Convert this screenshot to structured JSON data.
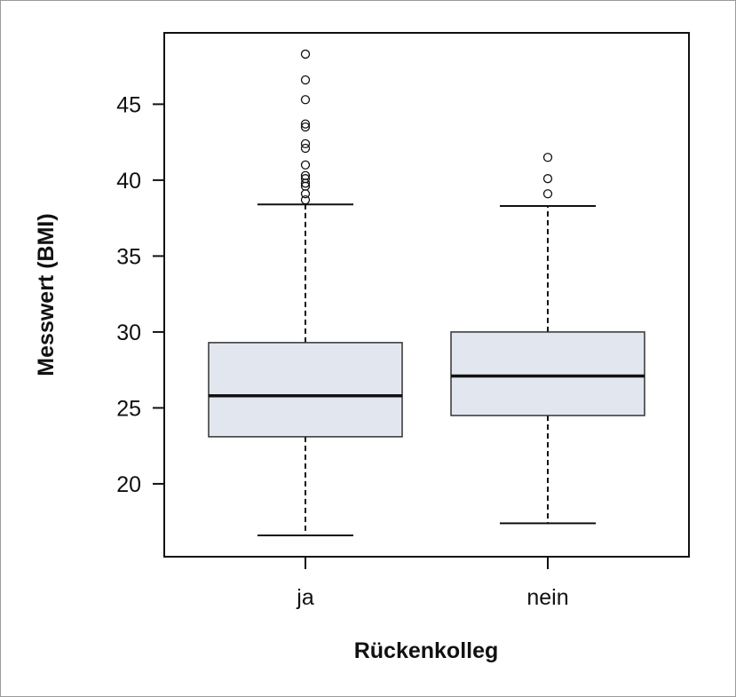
{
  "chart_data": {
    "type": "boxplot",
    "xlabel": "Rückenkolleg",
    "ylabel": "Messwert (BMI)",
    "categories": [
      "ja",
      "nein"
    ],
    "ylim": [
      15.2,
      49.7
    ],
    "yticks": [
      20,
      25,
      30,
      35,
      40,
      45
    ],
    "grid": false,
    "box_color": "#e2e7ef",
    "boxes": [
      {
        "name": "ja",
        "whisker_low": 16.6,
        "q1": 23.1,
        "median": 25.8,
        "q3": 29.3,
        "whisker_high": 38.4,
        "outliers": [
          38.7,
          39.1,
          39.6,
          39.8,
          40.1,
          40.3,
          41.0,
          42.1,
          42.4,
          43.5,
          43.7,
          45.3,
          46.6,
          48.3
        ]
      },
      {
        "name": "nein",
        "whisker_low": 17.4,
        "q1": 24.5,
        "median": 27.1,
        "q3": 30.0,
        "whisker_high": 38.3,
        "outliers": [
          39.1,
          40.1,
          41.5
        ]
      }
    ]
  }
}
